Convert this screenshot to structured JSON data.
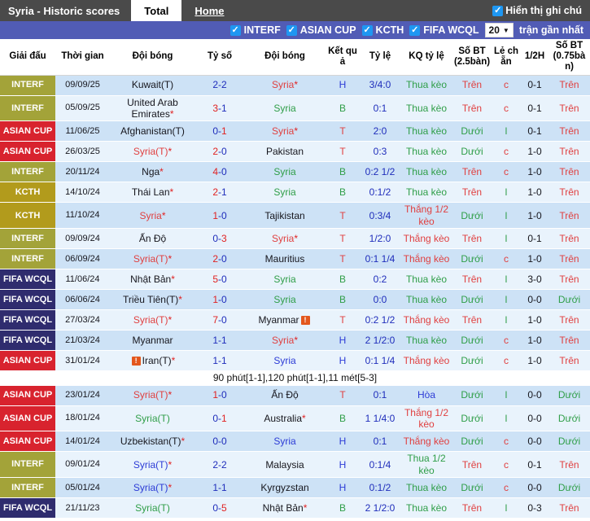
{
  "title_bar": {
    "title": "Syria - Historic scores",
    "tabs": [
      {
        "label": "Total",
        "active": true
      },
      {
        "label": "Home",
        "active": false
      }
    ],
    "note_toggle_label": "Hiển thị ghi chú",
    "note_toggle_checked": true
  },
  "filter_bar": {
    "filters": [
      {
        "label": "INTERF",
        "checked": true
      },
      {
        "label": "ASIAN CUP",
        "checked": true
      },
      {
        "label": "KCTH",
        "checked": true
      },
      {
        "label": "FIFA WCQL",
        "checked": true
      }
    ],
    "count_value": "20",
    "count_suffix": "trận gần nhất"
  },
  "icons": {
    "check": "✓",
    "dropdown_arrow": "▼",
    "note": "!"
  },
  "colors": {
    "bar": "#4a4a4a",
    "filterbar": "#515cb5",
    "checkbox": "#1e97f2",
    "red": "#e04040",
    "green": "#2f9e48",
    "blue": "#2c3bd6",
    "navy": "#1f2dbb",
    "black": "#16161d",
    "score_red": "#e02222",
    "row_dark": "#cde2f6",
    "row_light": "#e9f3fc",
    "league": {
      "INTERF": "#a3a339",
      "ASIAN CUP": "#d8232e",
      "KCTH": "#b29b1c",
      "FIFA WCQL": "#2f2c6e"
    }
  },
  "table": {
    "headers": [
      "Giải đấu",
      "Thời gian",
      "Đội bóng",
      "Tỷ số",
      "Đội bóng",
      "Kết quả",
      "Tỷ lệ",
      "KQ tỷ lệ",
      "Số BT (2.5bàn)",
      "Lẻ chẵn",
      "1/2H",
      "Số BT (0.75bàn)"
    ],
    "rows": [
      {
        "league": "INTERF",
        "date": "09/09/25",
        "home": {
          "name": "Kuwait(T)",
          "color": "black"
        },
        "score": {
          "h": "2",
          "a": "2",
          "hc": "blue",
          "ac": "blue"
        },
        "away": {
          "name": "Syria",
          "color": "red",
          "star": true
        },
        "res": {
          "t": "H",
          "c": "blue"
        },
        "odds": "3/4:0",
        "kq": {
          "t": "Thua kèo",
          "c": "green"
        },
        "ou25": {
          "t": "Trên",
          "c": "red"
        },
        "oe": {
          "t": "c",
          "c": "red"
        },
        "half": "0-1",
        "ou075": {
          "t": "Trên",
          "c": "red"
        }
      },
      {
        "league": "INTERF",
        "date": "05/09/25",
        "home": {
          "name": "United Arab Emirates",
          "color": "black",
          "star": true
        },
        "score": {
          "h": "3",
          "a": "1",
          "hc": "red",
          "ac": "blue"
        },
        "away": {
          "name": "Syria",
          "color": "green"
        },
        "res": {
          "t": "B",
          "c": "green"
        },
        "odds": "0:1",
        "kq": {
          "t": "Thua kèo",
          "c": "green"
        },
        "ou25": {
          "t": "Trên",
          "c": "red"
        },
        "oe": {
          "t": "c",
          "c": "red"
        },
        "half": "0-1",
        "ou075": {
          "t": "Trên",
          "c": "red"
        }
      },
      {
        "league": "ASIAN CUP",
        "date": "11/06/25",
        "home": {
          "name": "Afghanistan(T)",
          "color": "black"
        },
        "score": {
          "h": "0",
          "a": "1",
          "hc": "blue",
          "ac": "red"
        },
        "away": {
          "name": "Syria",
          "color": "red",
          "star": true
        },
        "res": {
          "t": "T",
          "c": "red"
        },
        "odds": "2:0",
        "kq": {
          "t": "Thua kèo",
          "c": "green"
        },
        "ou25": {
          "t": "Dưới",
          "c": "green"
        },
        "oe": {
          "t": "l",
          "c": "green"
        },
        "half": "0-1",
        "ou075": {
          "t": "Trên",
          "c": "red"
        }
      },
      {
        "league": "ASIAN CUP",
        "date": "26/03/25",
        "home": {
          "name": "Syria(T)",
          "color": "red",
          "star": true
        },
        "score": {
          "h": "2",
          "a": "0",
          "hc": "red",
          "ac": "blue"
        },
        "away": {
          "name": "Pakistan",
          "color": "black"
        },
        "res": {
          "t": "T",
          "c": "red"
        },
        "odds": "0:3",
        "kq": {
          "t": "Thua kèo",
          "c": "green"
        },
        "ou25": {
          "t": "Dưới",
          "c": "green"
        },
        "oe": {
          "t": "c",
          "c": "red"
        },
        "half": "1-0",
        "ou075": {
          "t": "Trên",
          "c": "red"
        }
      },
      {
        "league": "INTERF",
        "date": "20/11/24",
        "home": {
          "name": "Nga",
          "color": "black",
          "star": true
        },
        "score": {
          "h": "4",
          "a": "0",
          "hc": "red",
          "ac": "blue"
        },
        "away": {
          "name": "Syria",
          "color": "green"
        },
        "res": {
          "t": "B",
          "c": "green"
        },
        "odds": "0:2 1/2",
        "kq": {
          "t": "Thua kèo",
          "c": "green"
        },
        "ou25": {
          "t": "Trên",
          "c": "red"
        },
        "oe": {
          "t": "c",
          "c": "red"
        },
        "half": "1-0",
        "ou075": {
          "t": "Trên",
          "c": "red"
        }
      },
      {
        "league": "KCTH",
        "date": "14/10/24",
        "home": {
          "name": "Thái Lan",
          "color": "black",
          "star": true
        },
        "score": {
          "h": "2",
          "a": "1",
          "hc": "red",
          "ac": "blue"
        },
        "away": {
          "name": "Syria",
          "color": "green"
        },
        "res": {
          "t": "B",
          "c": "green"
        },
        "odds": "0:1/2",
        "kq": {
          "t": "Thua kèo",
          "c": "green"
        },
        "ou25": {
          "t": "Trên",
          "c": "red"
        },
        "oe": {
          "t": "l",
          "c": "green"
        },
        "half": "1-0",
        "ou075": {
          "t": "Trên",
          "c": "red"
        }
      },
      {
        "league": "KCTH",
        "date": "11/10/24",
        "home": {
          "name": "Syria",
          "color": "red",
          "star": true
        },
        "score": {
          "h": "1",
          "a": "0",
          "hc": "red",
          "ac": "blue"
        },
        "away": {
          "name": "Tajikistan",
          "color": "black"
        },
        "res": {
          "t": "T",
          "c": "red"
        },
        "odds": "0:3/4",
        "kq": {
          "t": "Thắng 1/2 kèo",
          "c": "red"
        },
        "ou25": {
          "t": "Dưới",
          "c": "green"
        },
        "oe": {
          "t": "l",
          "c": "green"
        },
        "half": "1-0",
        "ou075": {
          "t": "Trên",
          "c": "red"
        }
      },
      {
        "league": "INTERF",
        "date": "09/09/24",
        "home": {
          "name": "Ấn Độ",
          "color": "black"
        },
        "score": {
          "h": "0",
          "a": "3",
          "hc": "blue",
          "ac": "red"
        },
        "away": {
          "name": "Syria",
          "color": "red",
          "star": true
        },
        "res": {
          "t": "T",
          "c": "red"
        },
        "odds": "1/2:0",
        "kq": {
          "t": "Thắng kèo",
          "c": "red"
        },
        "ou25": {
          "t": "Trên",
          "c": "red"
        },
        "oe": {
          "t": "l",
          "c": "green"
        },
        "half": "0-1",
        "ou075": {
          "t": "Trên",
          "c": "red"
        }
      },
      {
        "league": "INTERF",
        "date": "06/09/24",
        "home": {
          "name": "Syria(T)",
          "color": "red",
          "star": true
        },
        "score": {
          "h": "2",
          "a": "0",
          "hc": "red",
          "ac": "blue"
        },
        "away": {
          "name": "Mauritius",
          "color": "black"
        },
        "res": {
          "t": "T",
          "c": "red"
        },
        "odds": "0:1 1/4",
        "kq": {
          "t": "Thắng kèo",
          "c": "red"
        },
        "ou25": {
          "t": "Dưới",
          "c": "green"
        },
        "oe": {
          "t": "c",
          "c": "red"
        },
        "half": "1-0",
        "ou075": {
          "t": "Trên",
          "c": "red"
        }
      },
      {
        "league": "FIFA WCQL",
        "date": "11/06/24",
        "home": {
          "name": "Nhật Bản",
          "color": "black",
          "star": true
        },
        "score": {
          "h": "5",
          "a": "0",
          "hc": "red",
          "ac": "blue"
        },
        "away": {
          "name": "Syria",
          "color": "green"
        },
        "res": {
          "t": "B",
          "c": "green"
        },
        "odds": "0:2",
        "kq": {
          "t": "Thua kèo",
          "c": "green"
        },
        "ou25": {
          "t": "Trên",
          "c": "red"
        },
        "oe": {
          "t": "l",
          "c": "green"
        },
        "half": "3-0",
        "ou075": {
          "t": "Trên",
          "c": "red"
        }
      },
      {
        "league": "FIFA WCQL",
        "date": "06/06/24",
        "home": {
          "name": "Triều Tiên(T)",
          "color": "black",
          "star": true
        },
        "score": {
          "h": "1",
          "a": "0",
          "hc": "red",
          "ac": "blue"
        },
        "away": {
          "name": "Syria",
          "color": "green"
        },
        "res": {
          "t": "B",
          "c": "green"
        },
        "odds": "0:0",
        "kq": {
          "t": "Thua kèo",
          "c": "green"
        },
        "ou25": {
          "t": "Dưới",
          "c": "green"
        },
        "oe": {
          "t": "l",
          "c": "green"
        },
        "half": "0-0",
        "ou075": {
          "t": "Dưới",
          "c": "green"
        }
      },
      {
        "league": "FIFA WCQL",
        "date": "27/03/24",
        "home": {
          "name": "Syria(T)",
          "color": "red",
          "star": true
        },
        "score": {
          "h": "7",
          "a": "0",
          "hc": "red",
          "ac": "blue"
        },
        "away": {
          "name": "Myanmar",
          "color": "black",
          "icon": "after"
        },
        "res": {
          "t": "T",
          "c": "red"
        },
        "odds": "0:2 1/2",
        "kq": {
          "t": "Thắng kèo",
          "c": "red"
        },
        "ou25": {
          "t": "Trên",
          "c": "red"
        },
        "oe": {
          "t": "l",
          "c": "green"
        },
        "half": "1-0",
        "ou075": {
          "t": "Trên",
          "c": "red"
        }
      },
      {
        "league": "FIFA WCQL",
        "date": "21/03/24",
        "home": {
          "name": "Myanmar",
          "color": "black"
        },
        "score": {
          "h": "1",
          "a": "1",
          "hc": "blue",
          "ac": "blue"
        },
        "away": {
          "name": "Syria",
          "color": "red",
          "star": true
        },
        "res": {
          "t": "H",
          "c": "blue"
        },
        "odds": "2 1/2:0",
        "kq": {
          "t": "Thua kèo",
          "c": "green"
        },
        "ou25": {
          "t": "Dưới",
          "c": "green"
        },
        "oe": {
          "t": "c",
          "c": "red"
        },
        "half": "1-0",
        "ou075": {
          "t": "Trên",
          "c": "red"
        }
      },
      {
        "league": "ASIAN CUP",
        "date": "31/01/24",
        "home": {
          "name": "Iran(T)",
          "color": "black",
          "star": true,
          "icon": "before"
        },
        "score": {
          "h": "1",
          "a": "1",
          "hc": "blue",
          "ac": "blue"
        },
        "away": {
          "name": "Syria",
          "color": "blue"
        },
        "res": {
          "t": "H",
          "c": "blue"
        },
        "odds": "0:1 1/4",
        "kq": {
          "t": "Thắng kèo",
          "c": "red"
        },
        "ou25": {
          "t": "Dưới",
          "c": "green"
        },
        "oe": {
          "t": "c",
          "c": "red"
        },
        "half": "1-0",
        "ou075": {
          "t": "Trên",
          "c": "red"
        },
        "note": "90 phút[1-1],120 phút[1-1],11 mét[5-3]"
      },
      {
        "league": "ASIAN CUP",
        "date": "23/01/24",
        "home": {
          "name": "Syria(T)",
          "color": "red",
          "star": true
        },
        "score": {
          "h": "1",
          "a": "0",
          "hc": "red",
          "ac": "blue"
        },
        "away": {
          "name": "Ấn Độ",
          "color": "black"
        },
        "res": {
          "t": "T",
          "c": "red"
        },
        "odds": "0:1",
        "kq": {
          "t": "Hòa",
          "c": "blue"
        },
        "ou25": {
          "t": "Dưới",
          "c": "green"
        },
        "oe": {
          "t": "l",
          "c": "green"
        },
        "half": "0-0",
        "ou075": {
          "t": "Dưới",
          "c": "green"
        }
      },
      {
        "league": "ASIAN CUP",
        "date": "18/01/24",
        "home": {
          "name": "Syria(T)",
          "color": "green"
        },
        "score": {
          "h": "0",
          "a": "1",
          "hc": "blue",
          "ac": "red"
        },
        "away": {
          "name": "Australia",
          "color": "black",
          "star": true
        },
        "res": {
          "t": "B",
          "c": "green"
        },
        "odds": "1 1/4:0",
        "kq": {
          "t": "Thắng 1/2 kèo",
          "c": "red"
        },
        "ou25": {
          "t": "Dưới",
          "c": "green"
        },
        "oe": {
          "t": "l",
          "c": "green"
        },
        "half": "0-0",
        "ou075": {
          "t": "Dưới",
          "c": "green"
        }
      },
      {
        "league": "ASIAN CUP",
        "date": "14/01/24",
        "home": {
          "name": "Uzbekistan(T)",
          "color": "black",
          "star": true
        },
        "score": {
          "h": "0",
          "a": "0",
          "hc": "blue",
          "ac": "blue"
        },
        "away": {
          "name": "Syria",
          "color": "blue"
        },
        "res": {
          "t": "H",
          "c": "blue"
        },
        "odds": "0:1",
        "kq": {
          "t": "Thắng kèo",
          "c": "red"
        },
        "ou25": {
          "t": "Dưới",
          "c": "green"
        },
        "oe": {
          "t": "c",
          "c": "red"
        },
        "half": "0-0",
        "ou075": {
          "t": "Dưới",
          "c": "green"
        }
      },
      {
        "league": "INTERF",
        "date": "09/01/24",
        "home": {
          "name": "Syria(T)",
          "color": "blue",
          "star": true
        },
        "score": {
          "h": "2",
          "a": "2",
          "hc": "blue",
          "ac": "blue"
        },
        "away": {
          "name": "Malaysia",
          "color": "black"
        },
        "res": {
          "t": "H",
          "c": "blue"
        },
        "odds": "0:1/4",
        "kq": {
          "t": "Thua 1/2 kèo",
          "c": "green"
        },
        "ou25": {
          "t": "Trên",
          "c": "red"
        },
        "oe": {
          "t": "c",
          "c": "red"
        },
        "half": "0-1",
        "ou075": {
          "t": "Trên",
          "c": "red"
        }
      },
      {
        "league": "INTERF",
        "date": "05/01/24",
        "home": {
          "name": "Syria(T)",
          "color": "blue",
          "star": true
        },
        "score": {
          "h": "1",
          "a": "1",
          "hc": "blue",
          "ac": "blue"
        },
        "away": {
          "name": "Kyrgyzstan",
          "color": "black"
        },
        "res": {
          "t": "H",
          "c": "blue"
        },
        "odds": "0:1/2",
        "kq": {
          "t": "Thua kèo",
          "c": "green"
        },
        "ou25": {
          "t": "Dưới",
          "c": "green"
        },
        "oe": {
          "t": "c",
          "c": "red"
        },
        "half": "0-0",
        "ou075": {
          "t": "Dưới",
          "c": "green"
        }
      },
      {
        "league": "FIFA WCQL",
        "date": "21/11/23",
        "home": {
          "name": "Syria(T)",
          "color": "green"
        },
        "score": {
          "h": "0",
          "a": "5",
          "hc": "blue",
          "ac": "red"
        },
        "away": {
          "name": "Nhật Bản",
          "color": "black",
          "star": true
        },
        "res": {
          "t": "B",
          "c": "green"
        },
        "odds": "2 1/2:0",
        "kq": {
          "t": "Thua kèo",
          "c": "green"
        },
        "ou25": {
          "t": "Trên",
          "c": "red"
        },
        "oe": {
          "t": "l",
          "c": "green"
        },
        "half": "0-3",
        "ou075": {
          "t": "Trên",
          "c": "red"
        }
      }
    ]
  }
}
